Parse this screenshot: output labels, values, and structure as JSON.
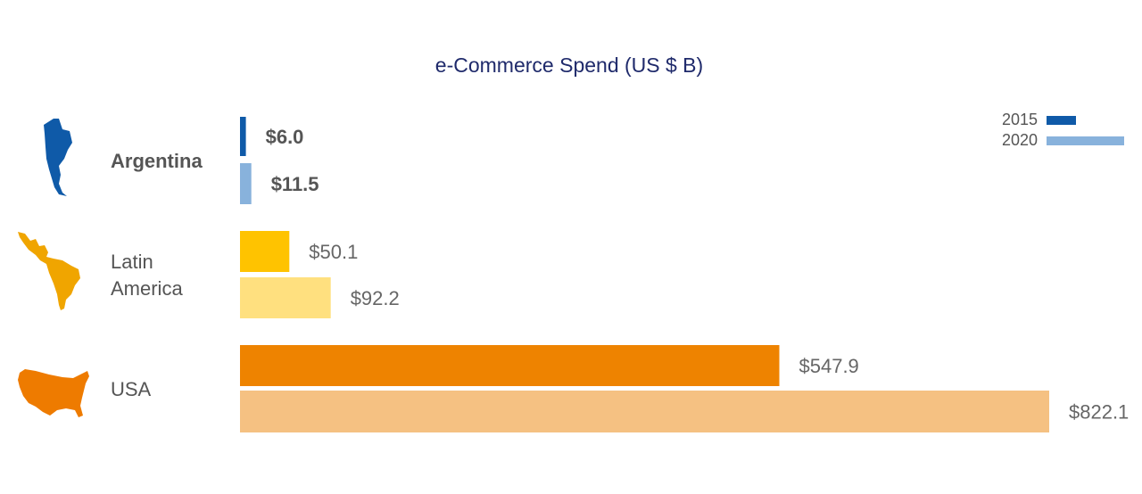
{
  "chart_data": {
    "type": "bar",
    "orientation": "horizontal",
    "title": "e-Commerce Spend (US $ B)",
    "categories": [
      "Argentina",
      "Latin America",
      "USA"
    ],
    "category_label_lines": [
      [
        "Argentina"
      ],
      [
        "Latin",
        "America"
      ],
      [
        "USA"
      ]
    ],
    "category_icons": [
      "argentina-map-icon",
      "latin-america-map-icon",
      "usa-map-icon"
    ],
    "series": [
      {
        "name": "2015",
        "values": [
          6.0,
          50.1,
          547.9
        ]
      },
      {
        "name": "2020",
        "values": [
          11.5,
          92.2,
          822.1
        ]
      }
    ],
    "value_labels": [
      [
        "$6.0",
        "$50.1",
        "$547.9"
      ],
      [
        "$11.5",
        "$92.2",
        "$822.1"
      ]
    ],
    "colors": {
      "Argentina": [
        "#0f5aa8",
        "#88b2dc"
      ],
      "Latin America": [
        "#ffc300",
        "#ffe07f"
      ],
      "USA": [
        "#ee8300",
        "#f5c182"
      ],
      "legend": [
        "#0f5aa8",
        "#88b2dc"
      ],
      "title": "#1f2a6b"
    },
    "xlim": [
      0,
      822.1
    ],
    "legend_position": "top-right",
    "grid": false
  }
}
